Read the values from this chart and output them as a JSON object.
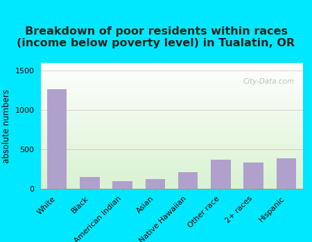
{
  "categories": [
    "White",
    "Black",
    "American Indian",
    "Asian",
    "Native Hawaiian",
    "Other race",
    "2+ races",
    "Hispanic"
  ],
  "values": [
    1270,
    150,
    95,
    120,
    210,
    370,
    335,
    385
  ],
  "bar_color": "#b0a0cc",
  "title": "Breakdown of poor residents within races\n(income below poverty level) in Tualatin, OR",
  "ylabel": "absolute numbers",
  "ylim": [
    0,
    1600
  ],
  "yticks": [
    0,
    500,
    1000,
    1500
  ],
  "bg_outer": "#00e8ff",
  "title_fontsize": 11.5,
  "axis_fontsize": 8.5,
  "tick_fontsize": 8,
  "watermark": "City-Data.com",
  "grid_color": "#dd9999",
  "title_color": "#222222"
}
